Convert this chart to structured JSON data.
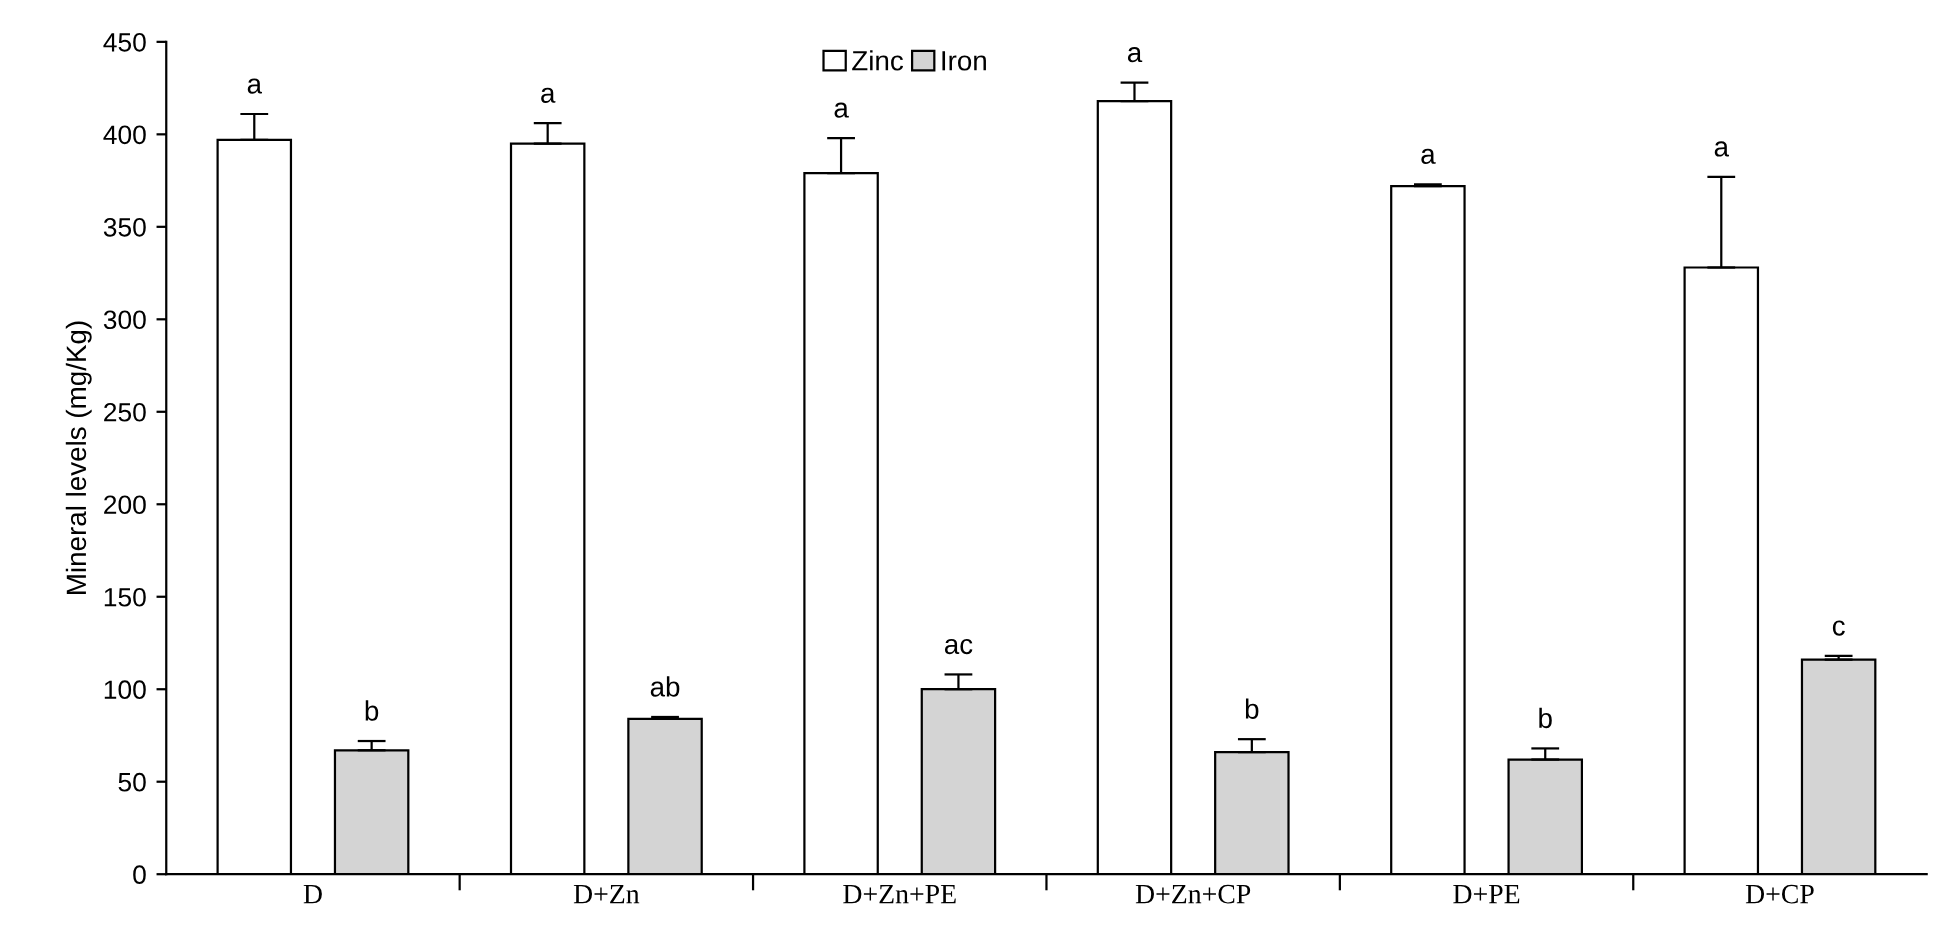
{
  "chart_data": {
    "type": "bar",
    "ylabel": "Mineral levels (mg/Kg)",
    "categories": [
      "D",
      "D+Zn",
      "D+Zn+PE",
      "D+Zn+CP",
      "D+PE",
      "D+CP"
    ],
    "series": [
      {
        "name": "Zinc",
        "color": "#ffffff",
        "values": [
          397,
          395,
          379,
          418,
          372,
          328
        ],
        "errors": [
          [
            397,
            411
          ],
          [
            395,
            406
          ],
          [
            379,
            398
          ],
          [
            418,
            428
          ],
          [
            372,
            373
          ],
          [
            328,
            377
          ]
        ]
      },
      {
        "name": "Iron",
        "color": "#d4d4d4",
        "values": [
          67,
          84,
          100,
          66,
          62,
          116
        ],
        "errors": [
          [
            67,
            72
          ],
          [
            84,
            85
          ],
          [
            100,
            108
          ],
          [
            66,
            73
          ],
          [
            62,
            68
          ],
          [
            116,
            118
          ]
        ]
      }
    ],
    "ylim": [
      0,
      450
    ],
    "yticks": [
      0,
      50,
      100,
      150,
      200,
      250,
      300,
      350,
      400,
      450
    ],
    "grid": false,
    "legend": "top",
    "annotations": [
      "a",
      "a",
      "a",
      "a",
      "a",
      "a",
      "b",
      "ab",
      "ac",
      "b",
      "b",
      "c"
    ]
  }
}
